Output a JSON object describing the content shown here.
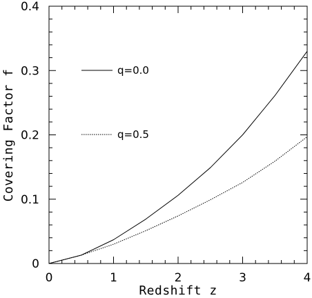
{
  "chart_data": {
    "type": "line",
    "title": "",
    "xlabel": "Redshift z",
    "ylabel": "Covering Factor f",
    "xlim": [
      0,
      4
    ],
    "ylim": [
      0,
      0.4
    ],
    "xticks": [
      "0",
      "1",
      "2",
      "3",
      "4"
    ],
    "yticks": [
      "0",
      "0.1",
      "0.2",
      "0.3",
      "0.4"
    ],
    "grid": false,
    "legend": "upper-left, inside plot",
    "series": [
      {
        "name": "q=0.0",
        "style": "solid",
        "color": "#000000",
        "x": [
          0,
          0.5,
          1,
          1.5,
          2,
          2.5,
          3,
          3.5,
          4
        ],
        "y": [
          0,
          0.013,
          0.037,
          0.069,
          0.106,
          0.149,
          0.2,
          0.261,
          0.33
        ]
      },
      {
        "name": "q=0.5",
        "style": "dotted",
        "color": "#000000",
        "x": [
          0,
          0.5,
          1,
          1.5,
          2,
          2.5,
          3,
          3.5,
          4
        ],
        "y": [
          0,
          0.013,
          0.03,
          0.051,
          0.074,
          0.099,
          0.126,
          0.159,
          0.197
        ]
      }
    ]
  }
}
